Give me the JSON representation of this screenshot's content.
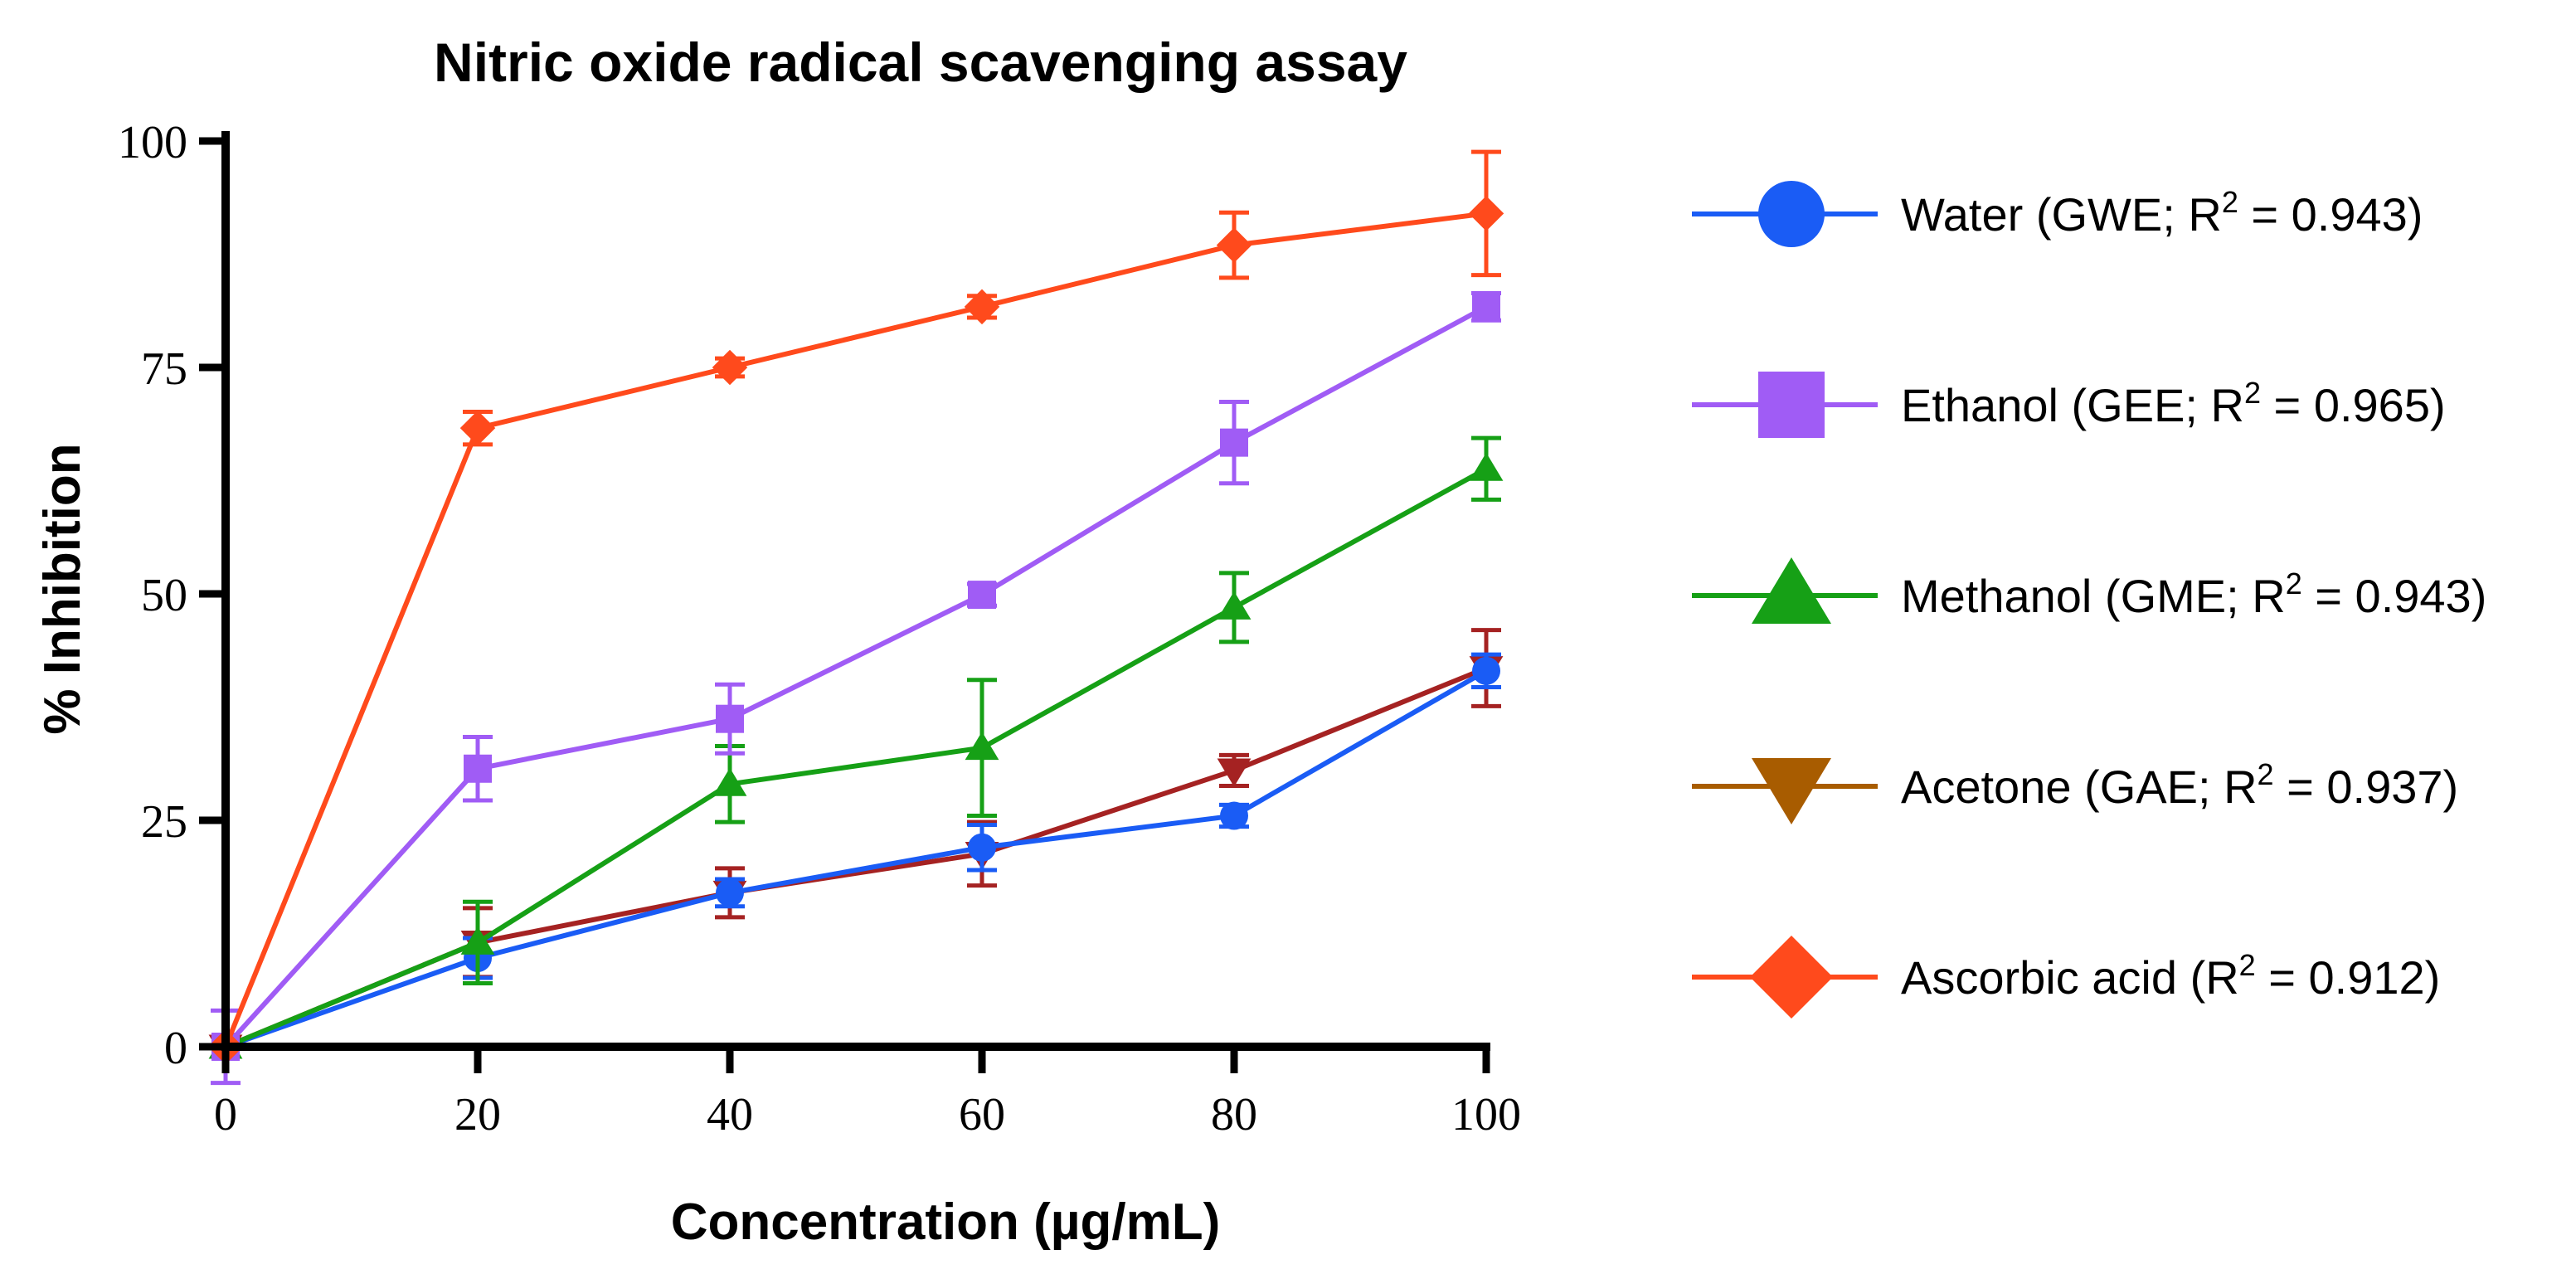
{
  "chart_data": {
    "type": "line",
    "title": "Nitric oxide radical scavenging assay",
    "xlabel": "Concentration (µg/mL)",
    "ylabel": "% Inhibition",
    "x": [
      0,
      20,
      40,
      60,
      80,
      100
    ],
    "xlim": [
      0,
      100
    ],
    "ylim": [
      0,
      100
    ],
    "xticks": [
      "0",
      "20",
      "40",
      "60",
      "80",
      "100"
    ],
    "yticks": [
      "0",
      "25",
      "50",
      "75",
      "100"
    ],
    "legend_position": "right",
    "grid": false,
    "series": [
      {
        "name": "Water (GWE; R² = 0.943)",
        "label_main": "Water (GWE; R",
        "label_sup": "2",
        "label_tail": " = 0.943)",
        "marker": "circle",
        "color": "#1a5cf5",
        "values": [
          0,
          9.8,
          17,
          22,
          25.5,
          41.5
        ],
        "errors": [
          0,
          2.2,
          1.5,
          2.5,
          1.2,
          1.8
        ]
      },
      {
        "name": "Ethanol (GEE; R² = 0.965)",
        "label_main": "Ethanol (GEE; R",
        "label_sup": "2",
        "label_tail": " = 0.965)",
        "marker": "square",
        "color": "#a05cf5",
        "values": [
          0,
          30.7,
          36.2,
          49.9,
          66.7,
          81.7
        ],
        "errors": [
          4,
          3.5,
          3.8,
          1.2,
          4.5,
          1.5
        ]
      },
      {
        "name": "Methanol (GME; R² = 0.943)",
        "label_main": "Methanol (GME; R",
        "label_sup": "2",
        "label_tail": " = 0.943)",
        "marker": "triangle-up",
        "color": "#16a016",
        "values": [
          0,
          11.5,
          29,
          33,
          48.5,
          63.8
        ],
        "errors": [
          0,
          4.5,
          4.2,
          7.5,
          3.8,
          3.4
        ]
      },
      {
        "name": "Acetone (GAE; R² = 0.937)",
        "label_main": "Acetone (GAE; R",
        "label_sup": "2",
        "label_tail": " = 0.937)",
        "marker": "triangle-down",
        "color": "#a52222",
        "legend_color": "#a85c00",
        "values": [
          0,
          11.5,
          17,
          21.3,
          30.5,
          41.8
        ],
        "errors": [
          0,
          3.8,
          2.7,
          3.5,
          1.7,
          4.2
        ]
      },
      {
        "name": "Ascorbic acid (R² = 0.912)",
        "label_main": "Ascorbic acid (R",
        "label_sup": "2",
        "label_tail": " = 0.912)",
        "marker": "diamond",
        "color": "#ff4a1c",
        "values": [
          0,
          68.3,
          75,
          81.7,
          88.5,
          92
        ],
        "errors": [
          0,
          1.8,
          1.0,
          1.2,
          3.6,
          6.8
        ]
      }
    ]
  }
}
